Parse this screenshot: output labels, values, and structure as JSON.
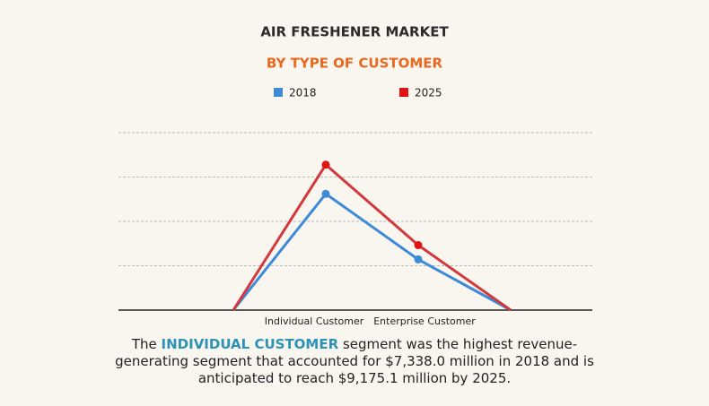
{
  "chart_data": {
    "type": "line",
    "title": "AIR FRESHENER MARKET",
    "subtitle": "BY TYPE OF CUSTOMER",
    "categories": [
      null,
      "Individual Customer",
      "Enterprise Customer",
      null
    ],
    "series": [
      {
        "name": "2018",
        "color": "#3d8ad8",
        "values": [
          0,
          7338.0,
          3200,
          0
        ]
      },
      {
        "name": "2025",
        "color": "#d2383c",
        "values": [
          0,
          9175.1,
          4100,
          0
        ]
      }
    ],
    "ylim": [
      0,
      11200
    ],
    "yticks": [
      0,
      2800,
      5600,
      8400,
      11200
    ],
    "grid": true,
    "caption": [
      "The",
      "INDIVIDUAL CUSTOMER",
      "segment was the highest revenue-generating segment that accounted for $7,338.0 million in 2018 and is anticipated to reach $9,175.1 million by 2025."
    ]
  }
}
